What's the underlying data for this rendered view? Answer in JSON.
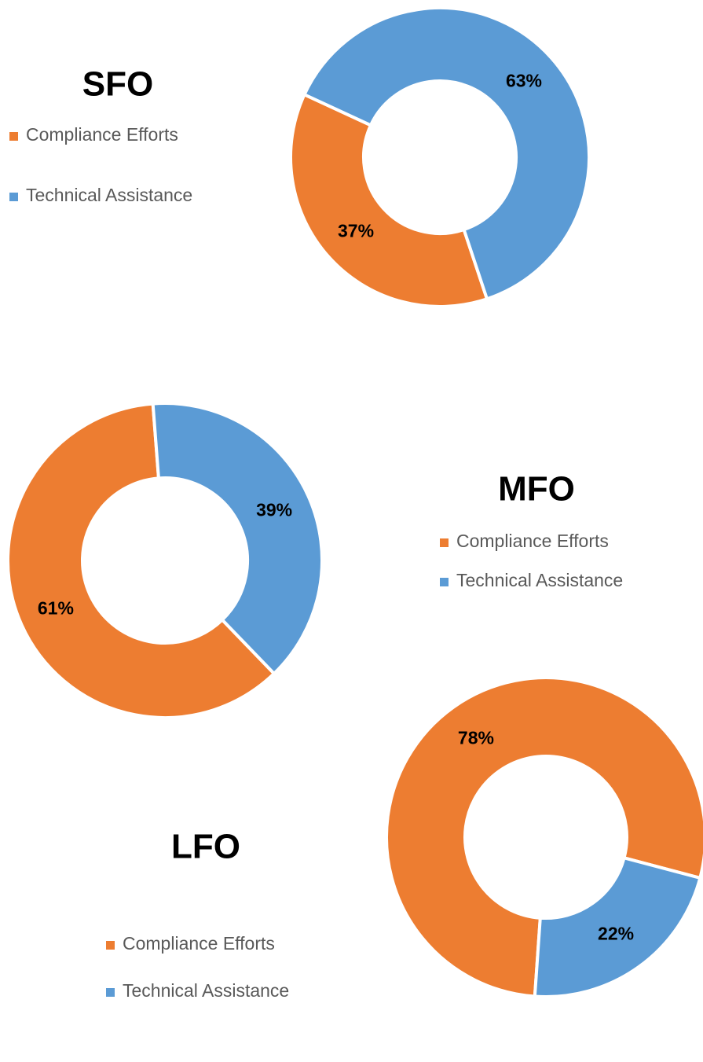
{
  "chart_data": [
    {
      "type": "pie",
      "title": "SFO",
      "categories": [
        "Compliance Efforts",
        "Technical Assistance"
      ],
      "values": [
        37,
        63
      ],
      "value_labels": [
        "37%",
        "63%"
      ],
      "colors": [
        "#ED7D31",
        "#5B9BD5"
      ]
    },
    {
      "type": "pie",
      "title": "MFO",
      "categories": [
        "Compliance Efforts",
        "Technical Assistance"
      ],
      "values": [
        61,
        39
      ],
      "value_labels": [
        "61%",
        "39%"
      ],
      "colors": [
        "#ED7D31",
        "#5B9BD5"
      ]
    },
    {
      "type": "pie",
      "title": "LFO",
      "categories": [
        "Compliance Efforts",
        "Technical Assistance"
      ],
      "values": [
        78,
        22
      ],
      "value_labels": [
        "78%",
        "22%"
      ],
      "colors": [
        "#ED7D31",
        "#5B9BD5"
      ]
    }
  ]
}
